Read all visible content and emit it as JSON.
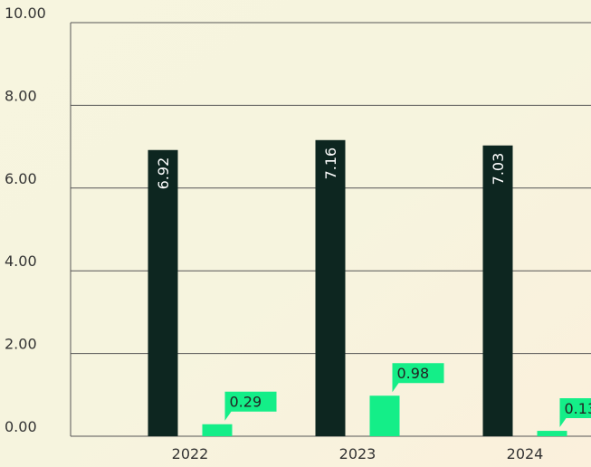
{
  "chart_data": {
    "type": "bar",
    "categories": [
      "2022",
      "2023",
      "2024"
    ],
    "series": [
      {
        "color": "#0d2620",
        "values": [
          6.92,
          7.16,
          7.03
        ]
      },
      {
        "color": "#14ee88",
        "values": [
          0.29,
          0.98,
          0.13
        ]
      }
    ],
    "ylim": [
      0,
      10
    ],
    "yticks": [
      {
        "value": 0,
        "label": "0.00"
      },
      {
        "value": 2,
        "label": "2.00"
      },
      {
        "value": 4,
        "label": "4.00"
      },
      {
        "value": 6,
        "label": "6.00"
      },
      {
        "value": 8,
        "label": "8.00"
      },
      {
        "value": 10,
        "label": "10.00"
      }
    ],
    "grid": true
  }
}
